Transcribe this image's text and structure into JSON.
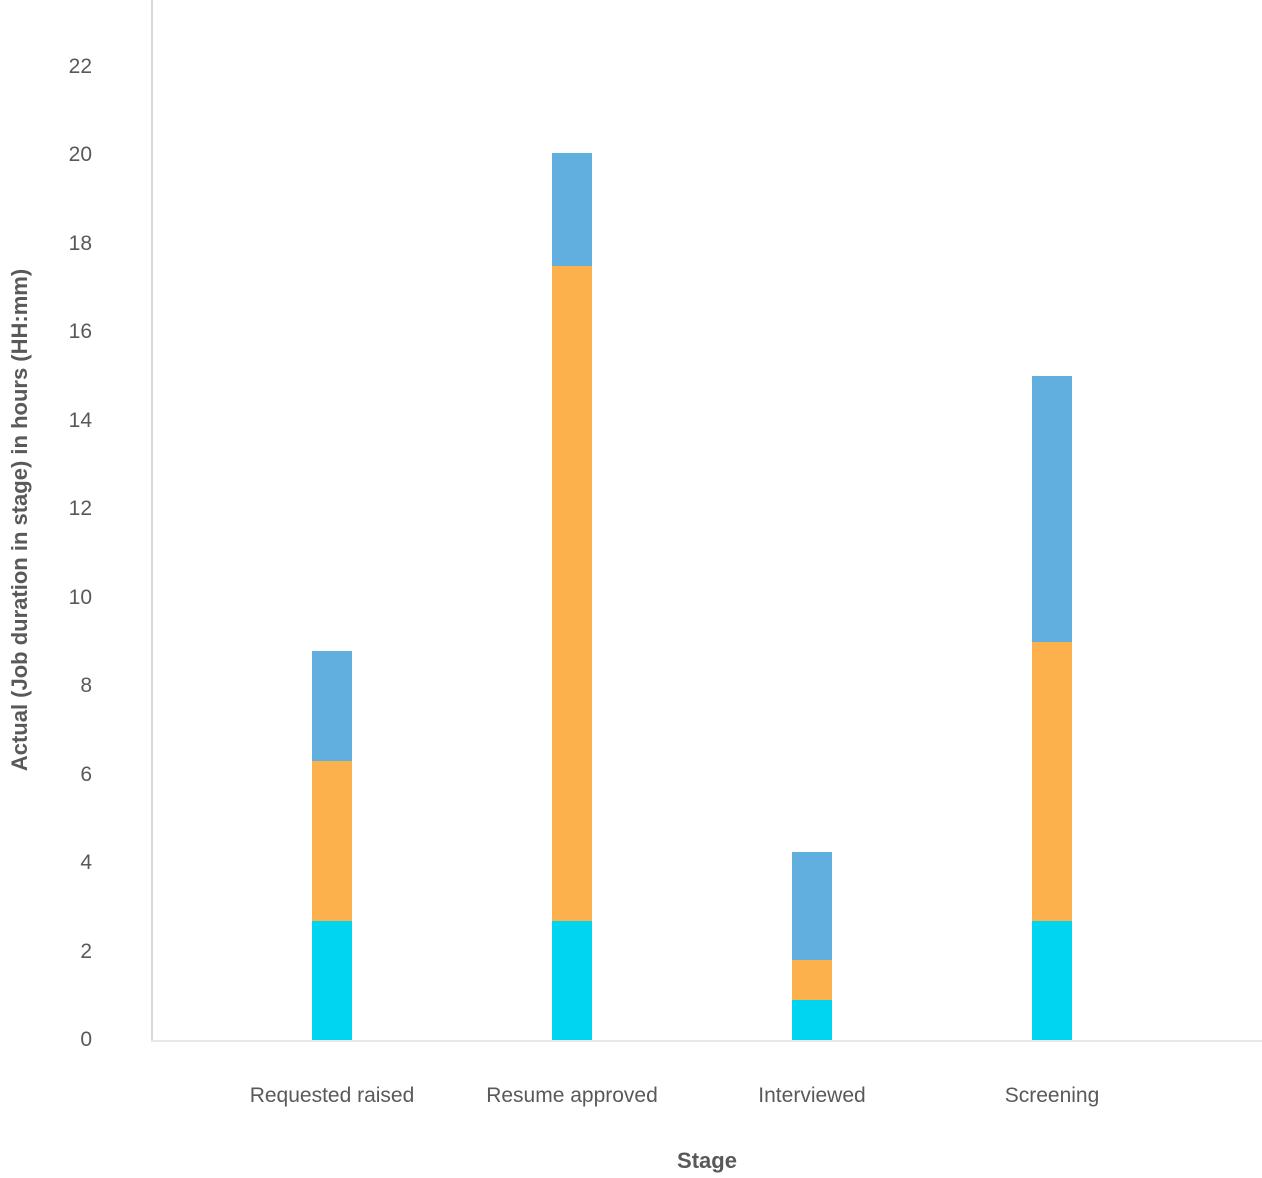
{
  "chart_data": {
    "type": "bar",
    "subtype": "stacked-vertical",
    "title": "",
    "xlabel": "Stage",
    "ylabel": "Actual (Job duration in stage) in hours (HH:mm)",
    "categories": [
      "Requested raised",
      "Resume approved",
      "Interviewed",
      "Screening"
    ],
    "series": [
      {
        "name": "cyan-bottom-segment",
        "color": "#00d5f0",
        "values": [
          2.7,
          2.7,
          0.9,
          2.7
        ]
      },
      {
        "name": "orange-middle-segment",
        "color": "#fcb14d",
        "values": [
          3.6,
          14.8,
          0.9,
          6.3
        ]
      },
      {
        "name": "blue-top-segment",
        "color": "#61afde",
        "values": [
          2.5,
          2.55,
          2.45,
          6.0
        ]
      }
    ],
    "stack_totals": [
      8.8,
      20.05,
      4.25,
      15.0
    ],
    "yticks": [
      0,
      2,
      4,
      6,
      8,
      10,
      12,
      14,
      16,
      18,
      20,
      22
    ],
    "ylim": [
      0,
      23.5
    ],
    "grid": false,
    "legend_position": "none"
  },
  "colors": {
    "axis_text": "#595959",
    "axis_line": "#d9d9d9",
    "background": "#ffffff"
  }
}
